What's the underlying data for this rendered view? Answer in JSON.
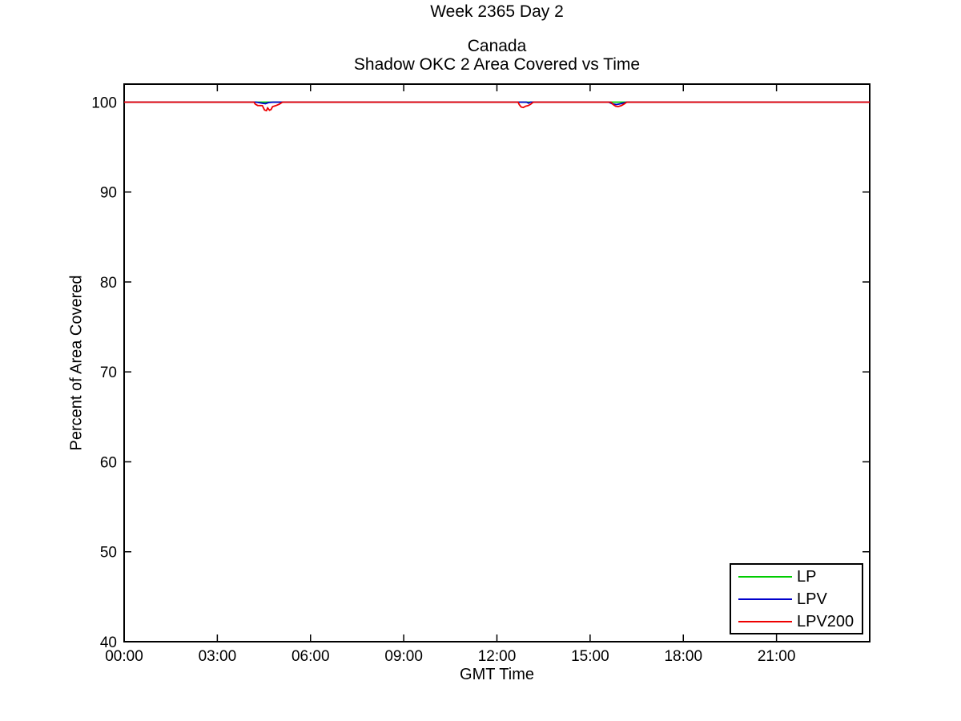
{
  "chart_data": {
    "type": "line",
    "suptitle": "Week 2365 Day 2",
    "title_lines": [
      "Canada",
      "Shadow OKC 2 Area Covered vs Time"
    ],
    "xlabel": "GMT Time",
    "ylabel": "Percent of Area Covered",
    "xlim": [
      0,
      24
    ],
    "ylim": [
      40,
      102
    ],
    "grid": false,
    "axis_color": "#000000",
    "background_color": "#ffffff",
    "legend": {
      "position": "bottom-right",
      "border_color": "#000000"
    },
    "x_ticks": [
      {
        "value": 0,
        "label": "00:00"
      },
      {
        "value": 3,
        "label": "03:00"
      },
      {
        "value": 6,
        "label": "06:00"
      },
      {
        "value": 9,
        "label": "09:00"
      },
      {
        "value": 12,
        "label": "12:00"
      },
      {
        "value": 15,
        "label": "15:00"
      },
      {
        "value": 18,
        "label": "18:00"
      },
      {
        "value": 21,
        "label": "21:00"
      }
    ],
    "y_ticks": [
      {
        "value": 40,
        "label": "40"
      },
      {
        "value": 50,
        "label": "50"
      },
      {
        "value": 60,
        "label": "60"
      },
      {
        "value": 70,
        "label": "70"
      },
      {
        "value": 80,
        "label": "80"
      },
      {
        "value": 90,
        "label": "90"
      },
      {
        "value": 100,
        "label": "100"
      }
    ],
    "series": [
      {
        "name": "LP",
        "color": "#00cc00",
        "points": [
          [
            0,
            100
          ],
          [
            24,
            100
          ]
        ]
      },
      {
        "name": "LPV",
        "color": "#0000cc",
        "points": [
          [
            0,
            100
          ],
          [
            4.25,
            100
          ],
          [
            4.45,
            99.87
          ],
          [
            4.55,
            99.83
          ],
          [
            4.65,
            99.95
          ],
          [
            4.8,
            100
          ],
          [
            12.95,
            100
          ],
          [
            13.02,
            99.88
          ],
          [
            13.08,
            100
          ],
          [
            15.6,
            100
          ],
          [
            15.72,
            99.8
          ],
          [
            15.85,
            99.73
          ],
          [
            15.95,
            99.8
          ],
          [
            16.05,
            99.87
          ],
          [
            16.18,
            100
          ],
          [
            24,
            100
          ]
        ]
      },
      {
        "name": "LPV200",
        "color": "#ee0000",
        "points": [
          [
            0,
            100
          ],
          [
            4.18,
            100
          ],
          [
            4.22,
            99.78
          ],
          [
            4.3,
            99.62
          ],
          [
            4.45,
            99.6
          ],
          [
            4.52,
            99.12
          ],
          [
            4.58,
            99.05
          ],
          [
            4.62,
            99.35
          ],
          [
            4.68,
            99.1
          ],
          [
            4.73,
            99.18
          ],
          [
            4.78,
            99.5
          ],
          [
            4.88,
            99.6
          ],
          [
            5.0,
            99.78
          ],
          [
            5.1,
            100
          ],
          [
            12.68,
            100
          ],
          [
            12.72,
            99.72
          ],
          [
            12.78,
            99.45
          ],
          [
            12.85,
            99.4
          ],
          [
            12.93,
            99.55
          ],
          [
            13.0,
            99.6
          ],
          [
            13.08,
            99.75
          ],
          [
            13.17,
            100
          ],
          [
            15.67,
            100
          ],
          [
            15.75,
            99.7
          ],
          [
            15.82,
            99.55
          ],
          [
            15.9,
            99.5
          ],
          [
            16.0,
            99.6
          ],
          [
            16.1,
            99.8
          ],
          [
            16.18,
            100
          ],
          [
            24,
            100
          ]
        ]
      }
    ]
  }
}
